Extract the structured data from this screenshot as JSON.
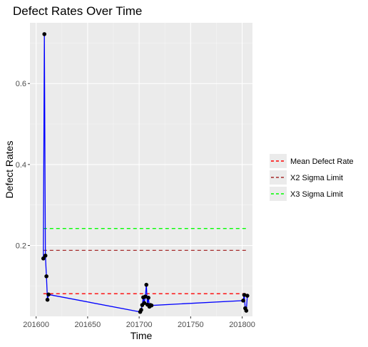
{
  "chart_data": {
    "type": "line",
    "title": "Defect Rates Over Time",
    "xlabel": "Time",
    "ylabel": "Defect Rates",
    "xlim": [
      201594,
      201810
    ],
    "ylim": [
      0.025,
      0.75
    ],
    "x_ticks": [
      201600,
      201650,
      201700,
      201750,
      201800
    ],
    "y_ticks": [
      0.2,
      0.4,
      0.6
    ],
    "grid": true,
    "legend_position": "right",
    "series": [
      {
        "type": "line+points",
        "line_color": "#0000ff",
        "point_color": "#000000",
        "x": [
          201607,
          201608,
          201609,
          201610,
          201611,
          201612,
          201701,
          201702,
          201703,
          201704,
          201705,
          201706,
          201707,
          201708,
          201709,
          201710,
          201711,
          201712,
          201801,
          201802,
          201803,
          201804,
          201805
        ],
        "y": [
          0.168,
          0.722,
          0.175,
          0.124,
          0.066,
          0.079,
          0.036,
          0.041,
          0.053,
          0.072,
          0.058,
          0.074,
          0.103,
          0.054,
          0.071,
          0.049,
          0.053,
          0.052,
          0.064,
          0.078,
          0.045,
          0.039,
          0.076
        ]
      }
    ],
    "reference_lines": [
      {
        "name": "Mean Defect Rate",
        "y": 0.081,
        "color": "#ff0000"
      },
      {
        "name": "X2 Sigma Limit",
        "y": 0.188,
        "color": "#a52a2a"
      },
      {
        "name": "X3 Sigma Limit",
        "y": 0.242,
        "color": "#00ff00"
      }
    ],
    "reference_x_range": [
      201607,
      201805
    ]
  }
}
